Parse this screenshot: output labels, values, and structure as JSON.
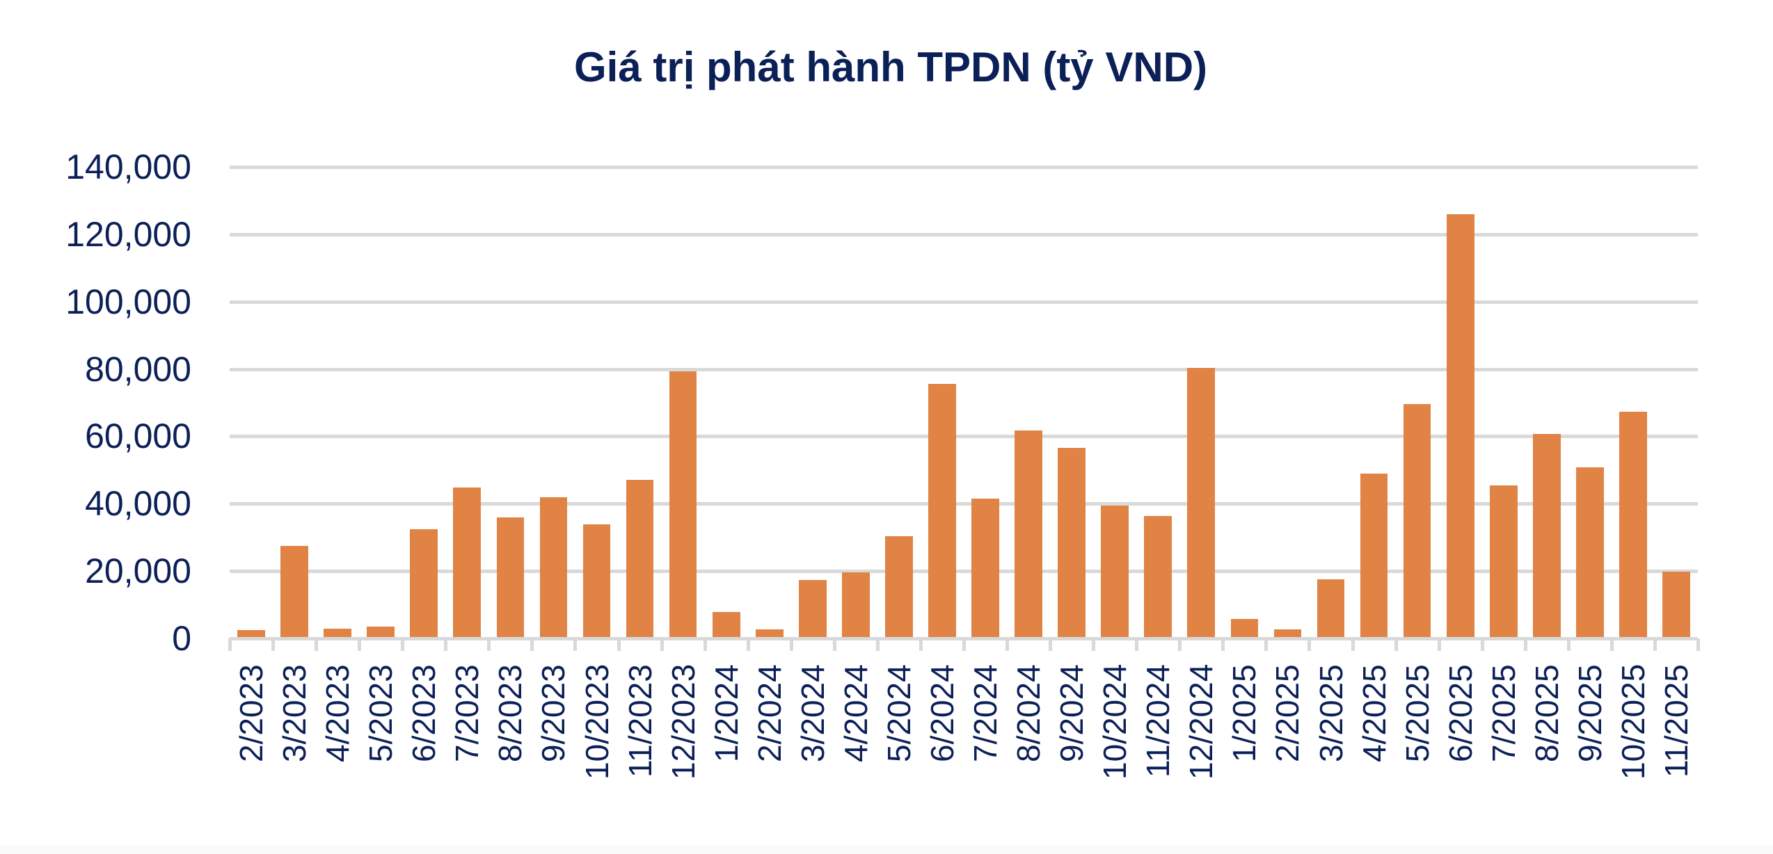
{
  "title": "Giá trị phát hành TPDN (tỷ VND)",
  "colors": {
    "bar": "#e08345",
    "text": "#0c2058",
    "grid": "#d9d9d9"
  },
  "y_axis": {
    "ticks": [
      "0",
      "20,000",
      "40,000",
      "60,000",
      "80,000",
      "100,000",
      "120,000",
      "140,000"
    ]
  },
  "chart_data": {
    "type": "bar",
    "title": "Giá trị phát hành TPDN (tỷ VND)",
    "xlabel": "",
    "ylabel": "",
    "ylim": [
      0,
      140000
    ],
    "yticks": [
      0,
      20000,
      40000,
      60000,
      80000,
      100000,
      120000,
      140000
    ],
    "grid": true,
    "legend": "none",
    "categories": [
      "2/2023",
      "3/2023",
      "4/2023",
      "5/2023",
      "6/2023",
      "7/2023",
      "8/2023",
      "9/2023",
      "10/2023",
      "11/2023",
      "12/2023",
      "1/2024",
      "2/2024",
      "3/2024",
      "4/2024",
      "5/2024",
      "6/2024",
      "7/2024",
      "8/2024",
      "9/2024",
      "10/2024",
      "11/2024",
      "12/2024",
      "1/2025",
      "2/2025",
      "3/2025",
      "4/2025",
      "5/2025",
      "6/2025",
      "7/2025",
      "8/2025",
      "9/2025",
      "10/2025",
      "11/2025"
    ],
    "values": [
      2000,
      27000,
      2500,
      3200,
      32000,
      44400,
      35600,
      41600,
      33500,
      46700,
      78800,
      7500,
      2200,
      17000,
      19200,
      29900,
      75200,
      41000,
      61400,
      56200,
      39000,
      36000,
      79900,
      5400,
      2300,
      17100,
      48600,
      69100,
      125500,
      45100,
      60300,
      50300,
      66900,
      19500
    ]
  }
}
